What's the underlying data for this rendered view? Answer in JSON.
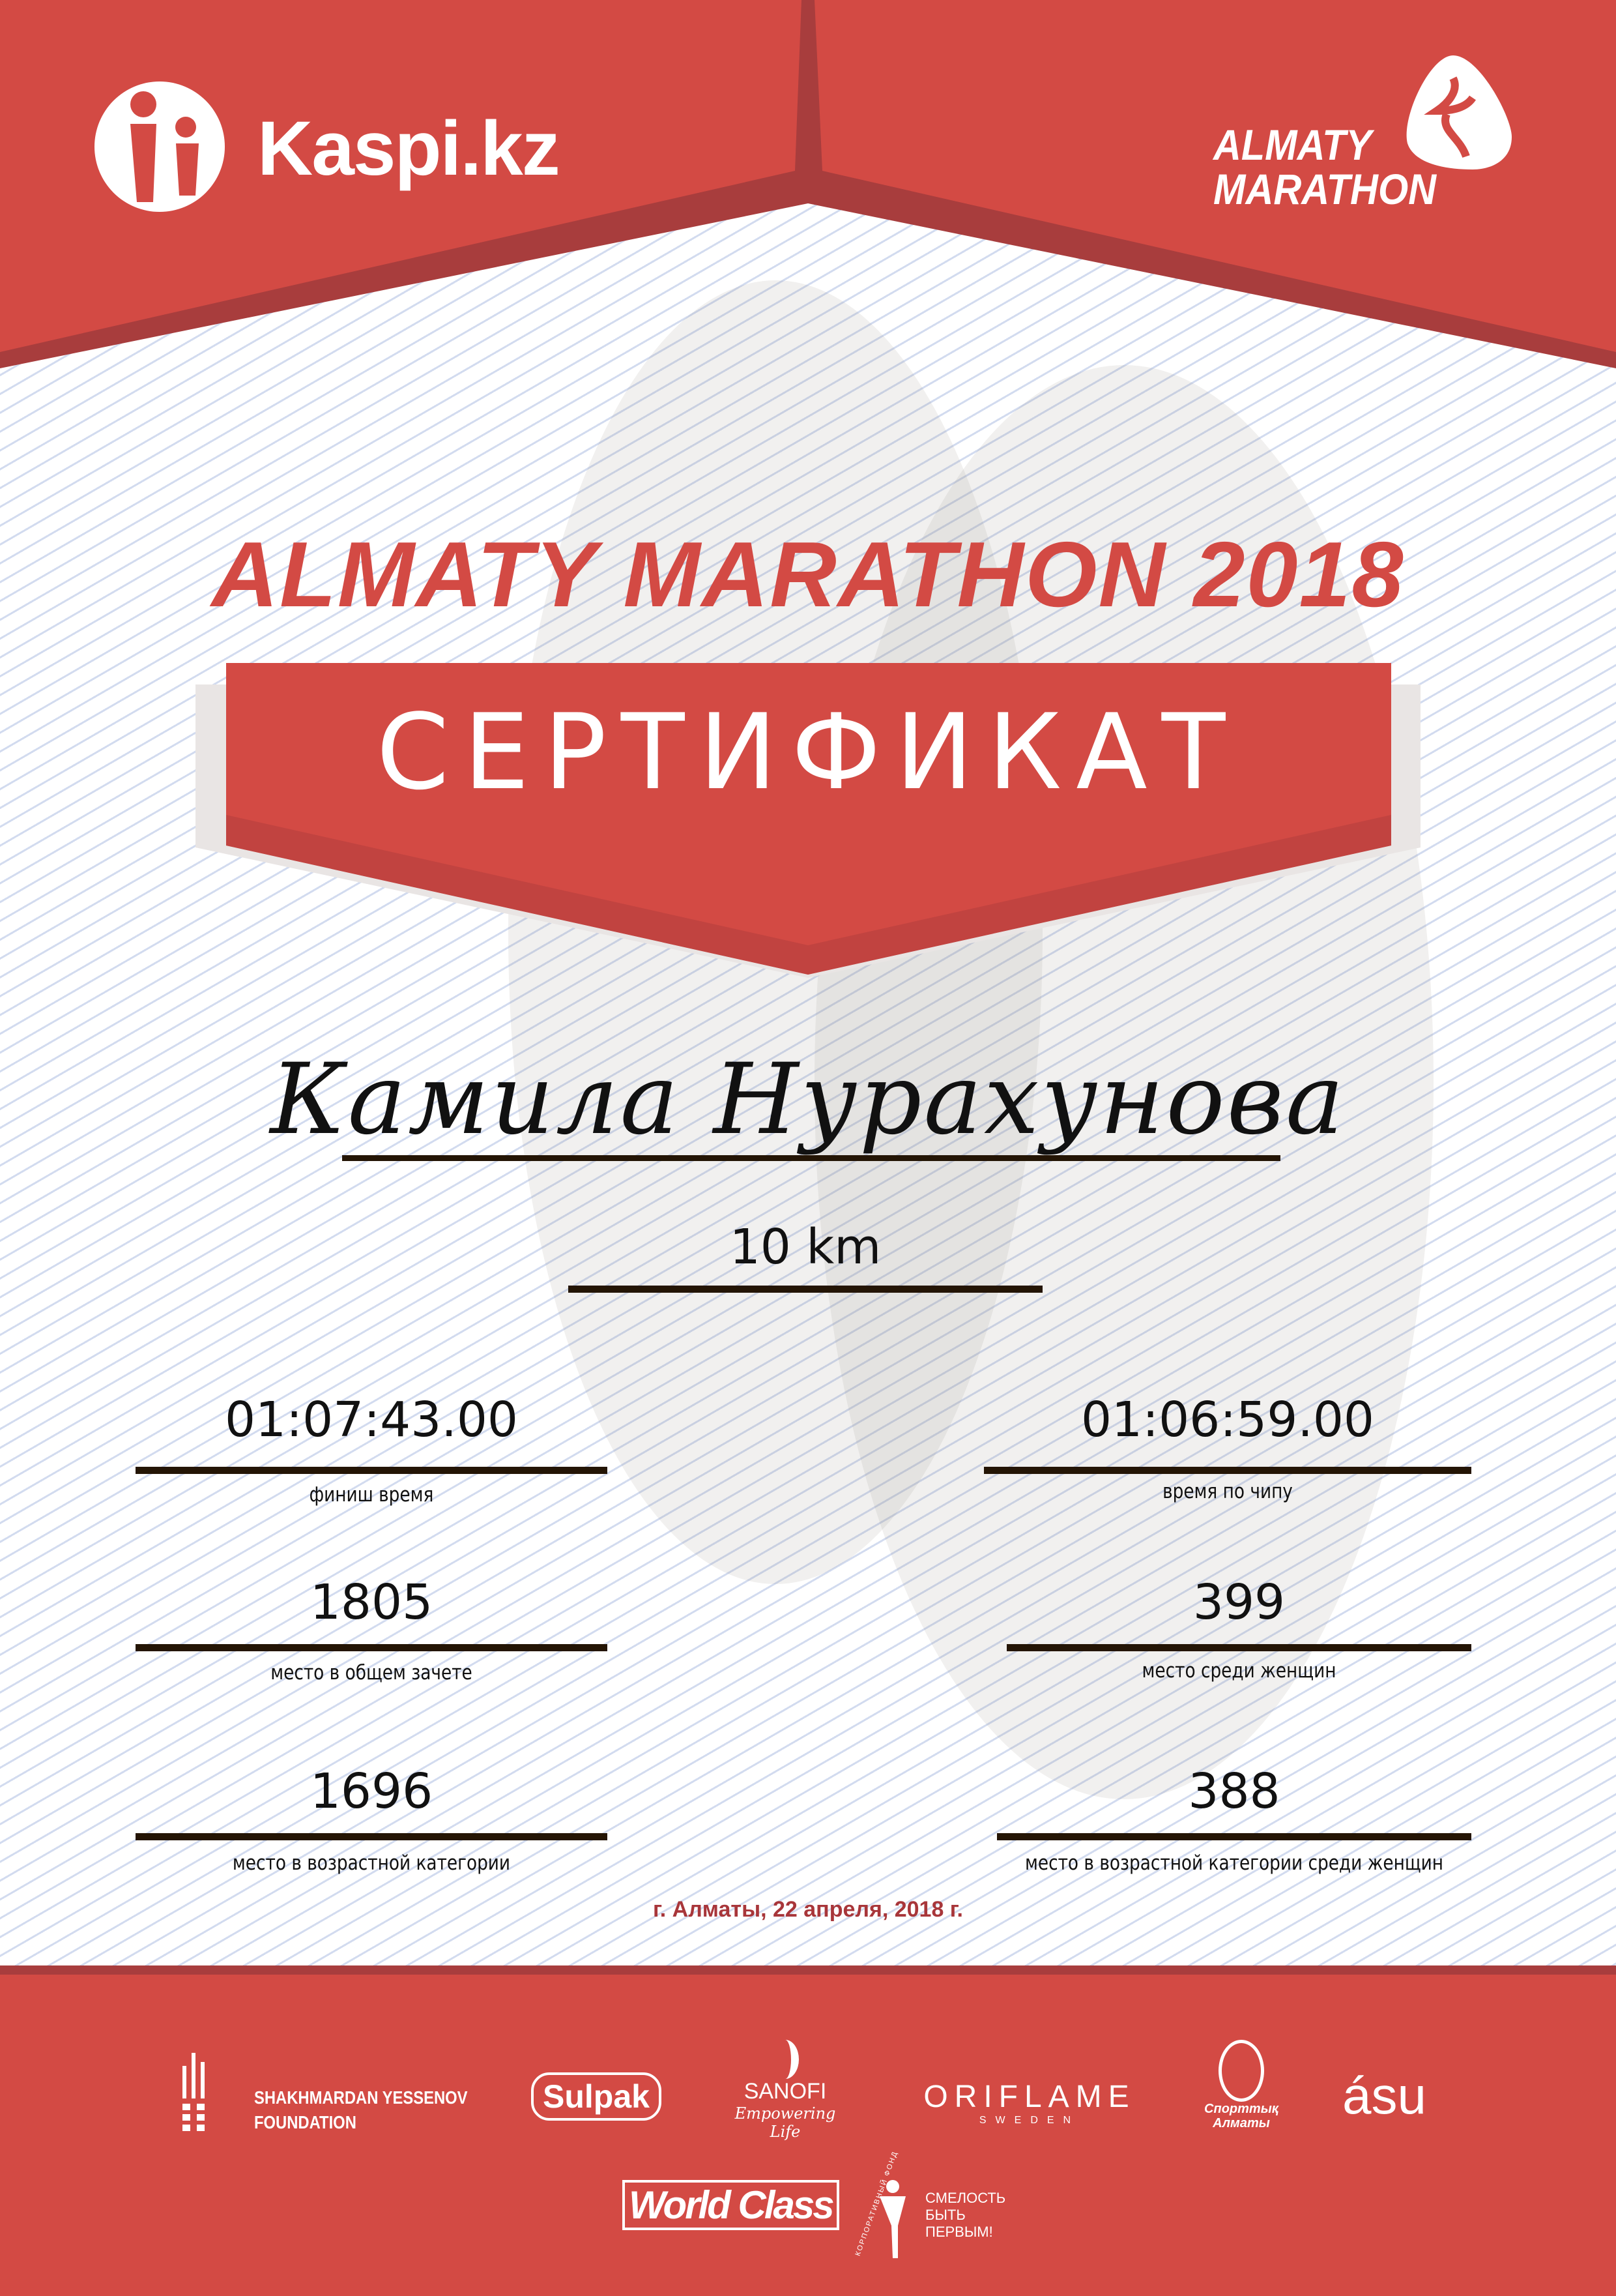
{
  "colors": {
    "brand_red": "#d34a44",
    "dark_red": "#a83d3d",
    "date_red": "#a8363a"
  },
  "header": {
    "sponsor_logo": "Kaspi.kz",
    "event_logo_line1": "ALMATY",
    "event_logo_line2": "MARATHON"
  },
  "title": "ALMATY MARATHON 2018",
  "certificate_label": "СЕРТИФИКАТ",
  "participant_name": "Камила Нурахунова",
  "distance": "10 km",
  "results": {
    "finish_time": {
      "value": "01:07:43.00",
      "label": "финиш время"
    },
    "chip_time": {
      "value": "01:06:59.00",
      "label": "время по чипу"
    },
    "overall_place": {
      "value": "1805",
      "label": "место в общем зачете"
    },
    "women_place": {
      "value": "399",
      "label": "место среди женщин"
    },
    "age_category_place": {
      "value": "1696",
      "label": "место в возрастной категории"
    },
    "women_age_category_place": {
      "value": "388",
      "label": "место в возрастной категории среди женщин"
    }
  },
  "date_line": "г. Алматы, 22 апреля, 2018 г.",
  "sponsors": {
    "yessenov_line1": "SHAKHMARDAN YESSENOV",
    "yessenov_line2": "FOUNDATION",
    "sulpak": "Sulpak",
    "sanofi": "SANOFI",
    "sanofi_tagline": "Empowering Life",
    "oriflame": "ORIFLAME",
    "oriflame_sub": "SWEDEN",
    "sport_almaty_line1": "Спорттық",
    "sport_almaty_line2": "Алматы",
    "asu": "ásu",
    "worldclass": "World Class",
    "fund_line1": "СМЕЛОСТЬ",
    "fund_line2": "БЫТЬ",
    "fund_line3": "ПЕРВЫМ!",
    "fund_arc": "КОРПОРАТИВНЫЙ ФОНД"
  }
}
